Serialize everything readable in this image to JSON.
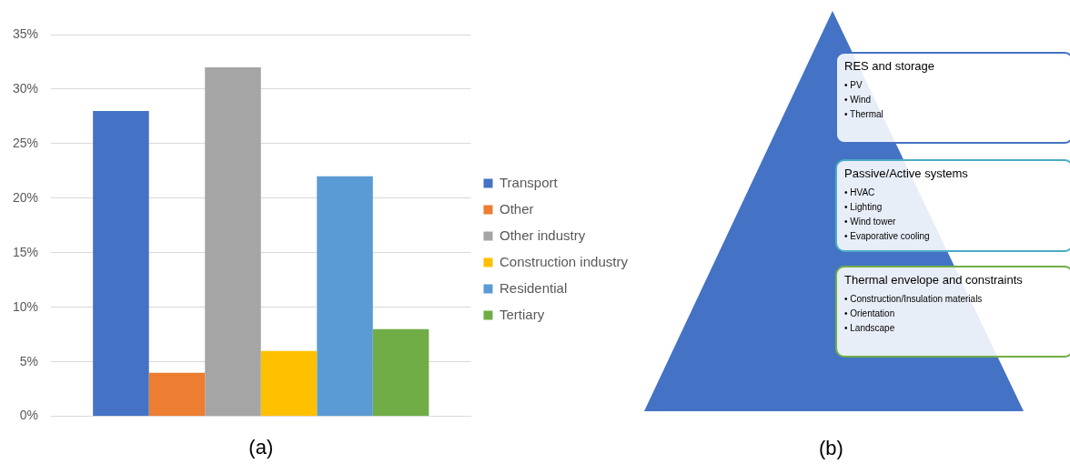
{
  "chart_data": [
    {
      "type": "bar",
      "xlabel": "(a)",
      "categories": [
        null
      ],
      "series": [
        {
          "name": "Transport",
          "color": "#4472c4",
          "values": [
            28
          ]
        },
        {
          "name": "Other",
          "color": "#ed7d31",
          "values": [
            4
          ]
        },
        {
          "name": "Other industry",
          "color": "#a5a5a5",
          "values": [
            32
          ]
        },
        {
          "name": "Construction industry",
          "color": "#ffc000",
          "values": [
            6
          ]
        },
        {
          "name": "Residential",
          "color": "#5b9bd5",
          "values": [
            22
          ]
        },
        {
          "name": "Tertiary",
          "color": "#70ad47",
          "values": [
            8
          ]
        }
      ],
      "ylim": [
        0,
        35
      ],
      "yticks": [
        {
          "value": 0,
          "label": "0%"
        },
        {
          "value": 5,
          "label": "5%"
        },
        {
          "value": 10,
          "label": "10%"
        },
        {
          "value": 15,
          "label": "15%"
        },
        {
          "value": 20,
          "label": "20%"
        },
        {
          "value": 25,
          "label": "25%"
        },
        {
          "value": 30,
          "label": "30%"
        },
        {
          "value": 35,
          "label": "35%"
        }
      ],
      "grid": "y",
      "legend": "right",
      "tick_labels": "y"
    },
    {
      "type": "other",
      "xlabel": "(b)",
      "color": "#4472c4",
      "colors": [
        "#4472c4",
        "#4bacc6",
        "#70ad47"
      ],
      "annotations": [
        "RES and storage\n• PV\n• Wind\n• Thermal",
        "Passive/Active systems\n• HVAC\n• Lighting\n• Wind tower\n• Evaporative cooling",
        "Thermal envelope and constraints\n• Construction/Insulation materials\n• Orientation\n• Landscape"
      ]
    }
  ]
}
